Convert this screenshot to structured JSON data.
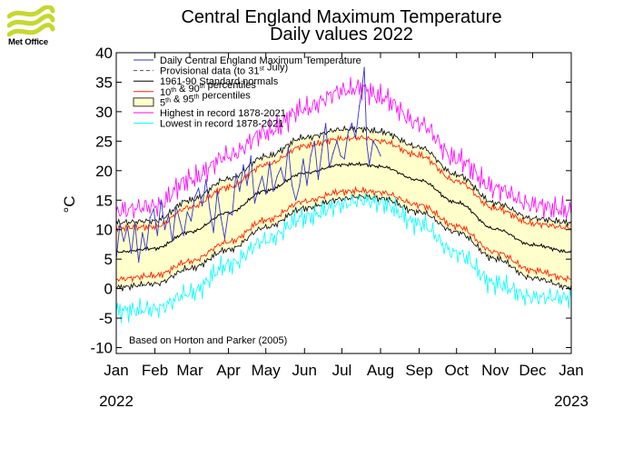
{
  "brand": {
    "name": "Met Office",
    "color": "#c6d82e"
  },
  "chart_data": {
    "type": "line",
    "title": "Central England Maximum Temperature",
    "subtitle": "Daily values 2022",
    "xlabel": "",
    "ylabel": "°C",
    "ylim": [
      -11,
      40
    ],
    "yticks": [
      40,
      35,
      30,
      25,
      20,
      15,
      10,
      5,
      0,
      -5,
      -10
    ],
    "x_unit": "day of year",
    "xlim": [
      0,
      365
    ],
    "months": [
      {
        "label": "Jan",
        "day": 0
      },
      {
        "label": "Feb",
        "day": 31
      },
      {
        "label": "Mar",
        "day": 59
      },
      {
        "label": "Apr",
        "day": 90
      },
      {
        "label": "May",
        "day": 120
      },
      {
        "label": "Jun",
        "day": 151
      },
      {
        "label": "Jul",
        "day": 181
      },
      {
        "label": "Aug",
        "day": 212
      },
      {
        "label": "Sep",
        "day": 243
      },
      {
        "label": "Oct",
        "day": 273
      },
      {
        "label": "Nov",
        "day": 304
      },
      {
        "label": "Dec",
        "day": 334
      },
      {
        "label": "Jan",
        "day": 365
      }
    ],
    "year_start_label": "2022",
    "year_end_label": "2023",
    "annotation": "Based on Horton and Parker (2005)",
    "legend": [
      {
        "key": "daily",
        "label": "Daily Central England Maximum Temperature",
        "color": "#3333cc",
        "style": "line"
      },
      {
        "key": "provisional",
        "label": "Provisional data (to 31",
        "sup": "st",
        "label_end": " July)",
        "color": "#555555",
        "style": "dash"
      },
      {
        "key": "normal",
        "label": "1961-90 Standard normals",
        "color": "#000000",
        "style": "line"
      },
      {
        "key": "p10",
        "label": "10",
        "sup": "th",
        "label_mid": " & 90",
        "sup2": "th",
        "label_end": " percentiles",
        "color": "#ff2200",
        "style": "line"
      },
      {
        "key": "p5",
        "label": "5",
        "sup": "th",
        "label_mid": " & 95",
        "sup2": "th",
        "label_end": " percentiles",
        "color": "#ffffcc",
        "style": "box"
      },
      {
        "key": "highest",
        "label": "Highest in record 1878-2021",
        "color": "#ff00ff",
        "style": "line"
      },
      {
        "key": "lowest",
        "label": "Lowest in record 1878-2021",
        "color": "#00ffff",
        "style": "line"
      }
    ],
    "legend_position": "top-left",
    "climatology": {
      "x": [
        0,
        31,
        59,
        90,
        120,
        151,
        181,
        196,
        212,
        243,
        273,
        304,
        334,
        365
      ],
      "normal": [
        6.2,
        6.8,
        9.6,
        12.9,
        16.6,
        19.6,
        21.0,
        21.1,
        20.7,
        18.4,
        14.6,
        10.1,
        7.4,
        6.2
      ],
      "p90": [
        10.3,
        10.5,
        13.8,
        17.2,
        21.0,
        24.2,
        25.4,
        25.6,
        25.0,
        22.6,
        18.2,
        13.6,
        11.0,
        10.3
      ],
      "p95": [
        11.2,
        11.5,
        15.0,
        18.6,
        22.4,
        25.6,
        27.0,
        27.1,
        26.6,
        24.0,
        19.3,
        14.5,
        11.9,
        11.2
      ],
      "p10": [
        1.6,
        2.2,
        4.6,
        7.9,
        11.6,
        14.8,
        16.4,
        16.6,
        16.3,
        14.2,
        10.6,
        6.2,
        3.1,
        1.6
      ],
      "p5": [
        0.2,
        0.8,
        3.4,
        6.6,
        10.4,
        13.6,
        15.2,
        15.6,
        15.3,
        13.0,
        9.6,
        5.1,
        1.8,
        0.2
      ],
      "highest": [
        13.2,
        14.0,
        18.5,
        22.5,
        26.5,
        30.5,
        33.5,
        34.0,
        32.5,
        28.0,
        22.0,
        17.0,
        14.2,
        13.2
      ],
      "lowest": [
        -3.8,
        -3.5,
        -0.8,
        4.0,
        8.2,
        12.1,
        14.2,
        15.0,
        14.5,
        11.0,
        6.0,
        0.8,
        -1.5,
        -1.5
      ]
    },
    "series": [
      {
        "name": "Daily Central England Maximum Temperature",
        "x": [
          0,
          3,
          6,
          9,
          12,
          15,
          18,
          21,
          24,
          27,
          30,
          33,
          36,
          39,
          42,
          45,
          48,
          51,
          54,
          57,
          60,
          63,
          66,
          69,
          72,
          75,
          78,
          81,
          84,
          87,
          90,
          93,
          96,
          99,
          102,
          105,
          108,
          111,
          114,
          117,
          120,
          123,
          126,
          129,
          132,
          135,
          138,
          141,
          144,
          147,
          150,
          153,
          156,
          159,
          162,
          165,
          168,
          171,
          174,
          177,
          180,
          183,
          186,
          189,
          192,
          195,
          197,
          199,
          201,
          203,
          206,
          209,
          212
        ],
        "values": [
          5.0,
          11.0,
          8.0,
          10.5,
          6.0,
          11.0,
          4.5,
          9.5,
          6.5,
          12.0,
          13.5,
          9.0,
          15.0,
          10.0,
          12.5,
          8.0,
          14.0,
          11.5,
          9.0,
          13.0,
          11.5,
          15.5,
          17.0,
          14.0,
          18.5,
          13.5,
          9.5,
          16.5,
          12.0,
          8.5,
          13.0,
          12.5,
          19.5,
          16.5,
          21.0,
          17.5,
          22.5,
          14.5,
          17.0,
          19.0,
          16.0,
          21.5,
          16.5,
          19.0,
          20.5,
          18.0,
          24.0,
          17.5,
          15.0,
          17.5,
          22.0,
          17.5,
          22.5,
          25.0,
          18.5,
          23.5,
          28.0,
          20.5,
          23.0,
          25.0,
          22.5,
          22.0,
          26.5,
          28.0,
          25.5,
          31.0,
          33.5,
          37.5,
          24.5,
          21.0,
          25.0,
          24.0,
          22.5
        ]
      }
    ]
  }
}
